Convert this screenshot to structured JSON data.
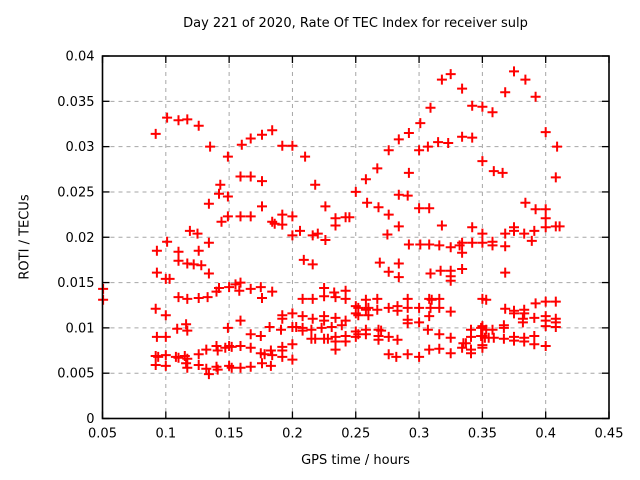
{
  "chart_data": {
    "type": "scatter",
    "title": "Day 221 of 2020, Rate Of TEC Index for receiver sulp",
    "xlabel": "GPS time / hours",
    "ylabel": "ROTI / TECUs",
    "xlim": [
      0.05,
      0.45
    ],
    "ylim": [
      0,
      0.04
    ],
    "xticks": [
      0.05,
      0.1,
      0.15,
      0.2,
      0.25,
      0.3,
      0.35,
      0.4,
      0.45
    ],
    "yticks": [
      0,
      0.005,
      0.01,
      0.015,
      0.02,
      0.025,
      0.03,
      0.035,
      0.04
    ],
    "xtick_labels": [
      "0.05",
      "0.1",
      "0.15",
      "0.2",
      "0.25",
      "0.3",
      "0.35",
      "0.4",
      "0.45"
    ],
    "ytick_labels": [
      "0",
      "0.005",
      "0.01",
      "0.015",
      "0.02",
      "0.025",
      "0.03",
      "0.035",
      "0.04"
    ],
    "grid": true,
    "legend": "none",
    "marker": "plus",
    "marker_color": "#ff0000",
    "marker_size": 10,
    "points": [
      [
        0.092,
        0.0314
      ],
      [
        0.101,
        0.0332
      ],
      [
        0.11,
        0.0329
      ],
      [
        0.117,
        0.033
      ],
      [
        0.126,
        0.0323
      ],
      [
        0.135,
        0.03
      ],
      [
        0.149,
        0.0289
      ],
      [
        0.16,
        0.0302
      ],
      [
        0.167,
        0.0309
      ],
      [
        0.176,
        0.0313
      ],
      [
        0.184,
        0.0318
      ],
      [
        0.192,
        0.0301
      ],
      [
        0.2,
        0.0301
      ],
      [
        0.21,
        0.0289
      ],
      [
        0.318,
        0.0374
      ],
      [
        0.325,
        0.038
      ],
      [
        0.334,
        0.0364
      ],
      [
        0.309,
        0.0343
      ],
      [
        0.342,
        0.0345
      ],
      [
        0.35,
        0.0344
      ],
      [
        0.301,
        0.0326
      ],
      [
        0.292,
        0.0315
      ],
      [
        0.284,
        0.0308
      ],
      [
        0.276,
        0.0296
      ],
      [
        0.3,
        0.0296
      ],
      [
        0.307,
        0.03
      ],
      [
        0.315,
        0.0305
      ],
      [
        0.323,
        0.0304
      ],
      [
        0.334,
        0.0311
      ],
      [
        0.342,
        0.031
      ],
      [
        0.267,
        0.0276
      ],
      [
        0.292,
        0.0271
      ],
      [
        0.375,
        0.0383
      ],
      [
        0.384,
        0.0374
      ],
      [
        0.368,
        0.036
      ],
      [
        0.392,
        0.0355
      ],
      [
        0.358,
        0.0338
      ],
      [
        0.4,
        0.0316
      ],
      [
        0.409,
        0.03
      ],
      [
        0.35,
        0.0284
      ],
      [
        0.359,
        0.0273
      ],
      [
        0.366,
        0.0271
      ],
      [
        0.143,
        0.0258
      ],
      [
        0.142,
        0.0248
      ],
      [
        0.149,
        0.0245
      ],
      [
        0.134,
        0.0237
      ],
      [
        0.144,
        0.0217
      ],
      [
        0.149,
        0.0223
      ],
      [
        0.119,
        0.0207
      ],
      [
        0.125,
        0.0204
      ],
      [
        0.101,
        0.0195
      ],
      [
        0.134,
        0.0194
      ],
      [
        0.093,
        0.0185
      ],
      [
        0.11,
        0.0184
      ],
      [
        0.126,
        0.0185
      ],
      [
        0.11,
        0.0174
      ],
      [
        0.117,
        0.0171
      ],
      [
        0.122,
        0.017
      ],
      [
        0.128,
        0.0169
      ],
      [
        0.093,
        0.0161
      ],
      [
        0.134,
        0.016
      ],
      [
        0.1,
        0.0154
      ],
      [
        0.103,
        0.0154
      ],
      [
        0.142,
        0.0144
      ],
      [
        0.14,
        0.014
      ],
      [
        0.159,
        0.0267
      ],
      [
        0.167,
        0.0267
      ],
      [
        0.176,
        0.0262
      ],
      [
        0.218,
        0.0258
      ],
      [
        0.176,
        0.0234
      ],
      [
        0.226,
        0.0234
      ],
      [
        0.159,
        0.0223
      ],
      [
        0.167,
        0.0223
      ],
      [
        0.192,
        0.0225
      ],
      [
        0.184,
        0.0217
      ],
      [
        0.186,
        0.0215
      ],
      [
        0.192,
        0.0214
      ],
      [
        0.2,
        0.0223
      ],
      [
        0.234,
        0.0221
      ],
      [
        0.242,
        0.0222
      ],
      [
        0.245,
        0.0222
      ],
      [
        0.234,
        0.0213
      ],
      [
        0.2,
        0.0202
      ],
      [
        0.206,
        0.0207
      ],
      [
        0.216,
        0.0202
      ],
      [
        0.22,
        0.0204
      ],
      [
        0.226,
        0.0197
      ],
      [
        0.209,
        0.0175
      ],
      [
        0.216,
        0.017
      ],
      [
        0.15,
        0.0145
      ],
      [
        0.155,
        0.0148
      ],
      [
        0.159,
        0.015
      ],
      [
        0.158,
        0.0141
      ],
      [
        0.167,
        0.0143
      ],
      [
        0.175,
        0.0145
      ],
      [
        0.184,
        0.014
      ],
      [
        0.225,
        0.0144
      ],
      [
        0.233,
        0.0139
      ],
      [
        0.242,
        0.0141
      ],
      [
        0.258,
        0.0264
      ],
      [
        0.25,
        0.025
      ],
      [
        0.259,
        0.0238
      ],
      [
        0.268,
        0.0233
      ],
      [
        0.284,
        0.0247
      ],
      [
        0.291,
        0.0246
      ],
      [
        0.276,
        0.0225
      ],
      [
        0.3,
        0.0232
      ],
      [
        0.308,
        0.0232
      ],
      [
        0.284,
        0.0212
      ],
      [
        0.275,
        0.0203
      ],
      [
        0.318,
        0.0213
      ],
      [
        0.292,
        0.0192
      ],
      [
        0.301,
        0.0192
      ],
      [
        0.308,
        0.0192
      ],
      [
        0.316,
        0.0191
      ],
      [
        0.325,
        0.0189
      ],
      [
        0.332,
        0.0191
      ],
      [
        0.334,
        0.0194
      ],
      [
        0.334,
        0.0183
      ],
      [
        0.342,
        0.0211
      ],
      [
        0.342,
        0.0194
      ],
      [
        0.269,
        0.0172
      ],
      [
        0.284,
        0.0171
      ],
      [
        0.276,
        0.0162
      ],
      [
        0.284,
        0.0156
      ],
      [
        0.309,
        0.016
      ],
      [
        0.317,
        0.0163
      ],
      [
        0.325,
        0.0163
      ],
      [
        0.325,
        0.0157
      ],
      [
        0.325,
        0.0152
      ],
      [
        0.334,
        0.0165
      ],
      [
        0.408,
        0.0266
      ],
      [
        0.384,
        0.0238
      ],
      [
        0.392,
        0.0231
      ],
      [
        0.4,
        0.0231
      ],
      [
        0.4,
        0.0221
      ],
      [
        0.4,
        0.0211
      ],
      [
        0.408,
        0.0212
      ],
      [
        0.411,
        0.0212
      ],
      [
        0.375,
        0.0211
      ],
      [
        0.375,
        0.0207
      ],
      [
        0.368,
        0.0204
      ],
      [
        0.383,
        0.0204
      ],
      [
        0.391,
        0.0207
      ],
      [
        0.389,
        0.0196
      ],
      [
        0.35,
        0.0204
      ],
      [
        0.35,
        0.0194
      ],
      [
        0.358,
        0.0195
      ],
      [
        0.358,
        0.0191
      ],
      [
        0.368,
        0.019
      ],
      [
        0.368,
        0.0161
      ],
      [
        0.11,
        0.0134
      ],
      [
        0.117,
        0.0132
      ],
      [
        0.126,
        0.0133
      ],
      [
        0.133,
        0.0134
      ],
      [
        0.092,
        0.0121
      ],
      [
        0.1,
        0.0114
      ],
      [
        0.116,
        0.0104
      ],
      [
        0.109,
        0.0099
      ],
      [
        0.117,
        0.0097
      ],
      [
        0.093,
        0.009
      ],
      [
        0.1,
        0.009
      ],
      [
        0.092,
        0.0069
      ],
      [
        0.094,
        0.0068
      ],
      [
        0.1,
        0.007
      ],
      [
        0.108,
        0.0068
      ],
      [
        0.11,
        0.0067
      ],
      [
        0.115,
        0.0069
      ],
      [
        0.117,
        0.0066
      ],
      [
        0.126,
        0.0071
      ],
      [
        0.132,
        0.0076
      ],
      [
        0.14,
        0.008
      ],
      [
        0.141,
        0.0075
      ],
      [
        0.147,
        0.0078
      ],
      [
        0.092,
        0.0059
      ],
      [
        0.1,
        0.0058
      ],
      [
        0.116,
        0.0061
      ],
      [
        0.117,
        0.0056
      ],
      [
        0.126,
        0.0059
      ],
      [
        0.132,
        0.0055
      ],
      [
        0.14,
        0.0057
      ],
      [
        0.141,
        0.0054
      ],
      [
        0.134,
        0.0049
      ],
      [
        0.149,
        0.01
      ],
      [
        0.176,
        0.0133
      ],
      [
        0.208,
        0.0132
      ],
      [
        0.216,
        0.0132
      ],
      [
        0.225,
        0.0135
      ],
      [
        0.234,
        0.0134
      ],
      [
        0.242,
        0.0132
      ],
      [
        0.159,
        0.0108
      ],
      [
        0.192,
        0.0114
      ],
      [
        0.192,
        0.011
      ],
      [
        0.2,
        0.0116
      ],
      [
        0.182,
        0.0101
      ],
      [
        0.191,
        0.0098
      ],
      [
        0.2,
        0.0101
      ],
      [
        0.203,
        0.0101
      ],
      [
        0.208,
        0.01
      ],
      [
        0.208,
        0.0097
      ],
      [
        0.215,
        0.0098
      ],
      [
        0.223,
        0.01
      ],
      [
        0.231,
        0.0101
      ],
      [
        0.239,
        0.0103
      ],
      [
        0.167,
        0.0093
      ],
      [
        0.175,
        0.0091
      ],
      [
        0.159,
        0.008
      ],
      [
        0.152,
        0.0079
      ],
      [
        0.15,
        0.008
      ],
      [
        0.167,
        0.0078
      ],
      [
        0.175,
        0.0072
      ],
      [
        0.178,
        0.0071
      ],
      [
        0.183,
        0.0075
      ],
      [
        0.184,
        0.007
      ],
      [
        0.192,
        0.0079
      ],
      [
        0.192,
        0.0075
      ],
      [
        0.192,
        0.0068
      ],
      [
        0.2,
        0.0082
      ],
      [
        0.2,
        0.0065
      ],
      [
        0.15,
        0.0058
      ],
      [
        0.152,
        0.0056
      ],
      [
        0.159,
        0.0056
      ],
      [
        0.167,
        0.0057
      ],
      [
        0.176,
        0.0061
      ],
      [
        0.183,
        0.0058
      ],
      [
        0.208,
        0.0113
      ],
      [
        0.216,
        0.011
      ],
      [
        0.225,
        0.0113
      ],
      [
        0.225,
        0.0108
      ],
      [
        0.234,
        0.0111
      ],
      [
        0.242,
        0.0108
      ],
      [
        0.215,
        0.0088
      ],
      [
        0.218,
        0.0088
      ],
      [
        0.225,
        0.0088
      ],
      [
        0.228,
        0.0088
      ],
      [
        0.234,
        0.009
      ],
      [
        0.234,
        0.0085
      ],
      [
        0.242,
        0.0091
      ],
      [
        0.242,
        0.0085
      ],
      [
        0.234,
        0.0076
      ],
      [
        0.258,
        0.0131
      ],
      [
        0.267,
        0.0132
      ],
      [
        0.25,
        0.0124
      ],
      [
        0.252,
        0.0122
      ],
      [
        0.258,
        0.012
      ],
      [
        0.26,
        0.0122
      ],
      [
        0.267,
        0.012
      ],
      [
        0.25,
        0.0116
      ],
      [
        0.252,
        0.0114
      ],
      [
        0.26,
        0.0114
      ],
      [
        0.276,
        0.0122
      ],
      [
        0.283,
        0.0124
      ],
      [
        0.283,
        0.0119
      ],
      [
        0.291,
        0.0132
      ],
      [
        0.291,
        0.0122
      ],
      [
        0.3,
        0.0122
      ],
      [
        0.308,
        0.0132
      ],
      [
        0.31,
        0.0131
      ],
      [
        0.309,
        0.0122
      ],
      [
        0.316,
        0.0132
      ],
      [
        0.316,
        0.0122
      ],
      [
        0.325,
        0.0118
      ],
      [
        0.308,
        0.0113
      ],
      [
        0.291,
        0.0109
      ],
      [
        0.291,
        0.0105
      ],
      [
        0.3,
        0.0106
      ],
      [
        0.258,
        0.0098
      ],
      [
        0.258,
        0.0093
      ],
      [
        0.268,
        0.0098
      ],
      [
        0.27,
        0.0097
      ],
      [
        0.268,
        0.0091
      ],
      [
        0.268,
        0.0087
      ],
      [
        0.25,
        0.0096
      ],
      [
        0.25,
        0.009
      ],
      [
        0.252,
        0.0093
      ],
      [
        0.276,
        0.009
      ],
      [
        0.283,
        0.0087
      ],
      [
        0.307,
        0.0098
      ],
      [
        0.316,
        0.0093
      ],
      [
        0.325,
        0.0089
      ],
      [
        0.335,
        0.0083
      ],
      [
        0.337,
        0.0083
      ],
      [
        0.334,
        0.0078
      ],
      [
        0.341,
        0.0098
      ],
      [
        0.349,
        0.01
      ],
      [
        0.341,
        0.009
      ],
      [
        0.349,
        0.0091
      ],
      [
        0.341,
        0.0076
      ],
      [
        0.341,
        0.0072
      ],
      [
        0.35,
        0.0081
      ],
      [
        0.276,
        0.0071
      ],
      [
        0.282,
        0.0068
      ],
      [
        0.291,
        0.0071
      ],
      [
        0.3,
        0.0068
      ],
      [
        0.308,
        0.0076
      ],
      [
        0.316,
        0.0077
      ],
      [
        0.325,
        0.0072
      ],
      [
        0.35,
        0.0132
      ],
      [
        0.353,
        0.0131
      ],
      [
        0.392,
        0.0127
      ],
      [
        0.4,
        0.0129
      ],
      [
        0.408,
        0.0129
      ],
      [
        0.368,
        0.0121
      ],
      [
        0.375,
        0.0119
      ],
      [
        0.375,
        0.0116
      ],
      [
        0.383,
        0.012
      ],
      [
        0.383,
        0.0116
      ],
      [
        0.391,
        0.0111
      ],
      [
        0.4,
        0.0113
      ],
      [
        0.4,
        0.0108
      ],
      [
        0.382,
        0.011
      ],
      [
        0.382,
        0.0106
      ],
      [
        0.408,
        0.011
      ],
      [
        0.408,
        0.0106
      ],
      [
        0.4,
        0.0102
      ],
      [
        0.408,
        0.0101
      ],
      [
        0.35,
        0.0102
      ],
      [
        0.353,
        0.0098
      ],
      [
        0.358,
        0.0098
      ],
      [
        0.367,
        0.0103
      ],
      [
        0.367,
        0.01
      ],
      [
        0.352,
        0.0089
      ],
      [
        0.355,
        0.0089
      ],
      [
        0.35,
        0.0091
      ],
      [
        0.359,
        0.0089
      ],
      [
        0.367,
        0.0088
      ],
      [
        0.375,
        0.009
      ],
      [
        0.375,
        0.0086
      ],
      [
        0.383,
        0.0089
      ],
      [
        0.383,
        0.0085
      ],
      [
        0.391,
        0.0091
      ],
      [
        0.391,
        0.0082
      ],
      [
        0.4,
        0.008
      ],
      [
        0.35,
        0.0078
      ],
      [
        0.0505,
        0.0143
      ],
      [
        0.0505,
        0.0131
      ]
    ]
  }
}
